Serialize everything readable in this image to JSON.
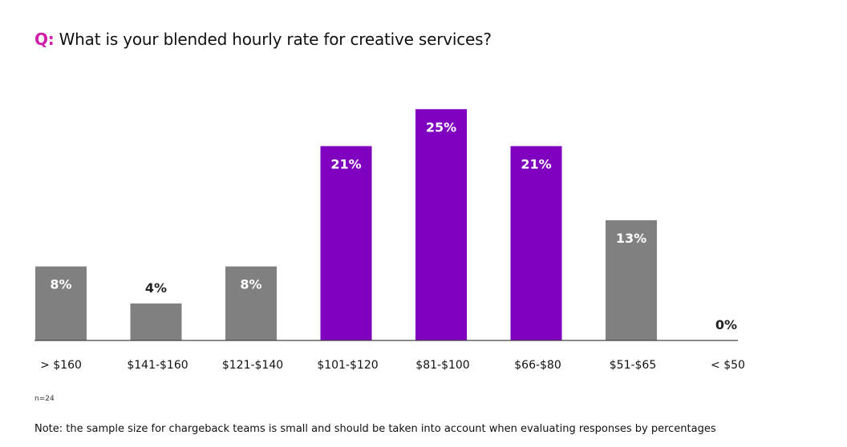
{
  "header": {
    "q_prefix": "Q:",
    "question": "What is your blended hourly rate for creative services?"
  },
  "footer": {
    "n": "n=24",
    "note": "Note: the sample size for chargeback teams is small and should be taken into account when evaluating responses by percentages"
  },
  "colors": {
    "highlight": "#8000c0",
    "neutral": "#808080",
    "accent": "#d01ea8"
  },
  "chart_data": {
    "type": "bar",
    "title": "What is your blended hourly rate for creative services?",
    "categories": [
      "> $160",
      "$141-$160",
      "$121-$140",
      "$101-$120",
      "$81-$100",
      "$66-$80",
      "$51-$65",
      "< $50"
    ],
    "values": [
      8,
      4,
      8,
      21,
      25,
      21,
      13,
      0
    ],
    "value_labels": [
      "8%",
      "4%",
      "8%",
      "21%",
      "25%",
      "21%",
      "13%",
      "0%"
    ],
    "highlighted": [
      false,
      false,
      false,
      true,
      true,
      true,
      false,
      false
    ],
    "xlabel": "",
    "ylabel": "",
    "ylim": [
      0,
      25
    ],
    "grid": false,
    "legend": "none"
  }
}
